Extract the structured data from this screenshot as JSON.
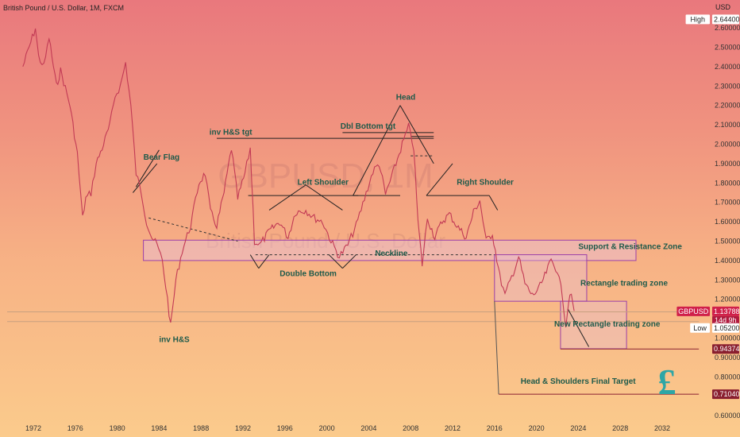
{
  "header": {
    "symbol_title": "British Pound / U.S. Dollar, 1M, FXCM",
    "currency": "USD"
  },
  "watermark": {
    "ticker": "GBPUSD, 1M",
    "name": "British Pound / U.S. Dollar"
  },
  "logo_glyph": "£",
  "chart_data": {
    "type": "line",
    "title": "British Pound / U.S. Dollar, 1M, FXCM",
    "y_unit": "USD",
    "ylim": [
      0.55,
      2.72
    ],
    "xlim": [
      1969.5,
      2035
    ],
    "price_path": [
      [
        1971.0,
        2.4
      ],
      [
        1971.6,
        2.5
      ],
      [
        1972.2,
        2.6
      ],
      [
        1972.5,
        2.45
      ],
      [
        1973.0,
        2.4
      ],
      [
        1973.5,
        2.55
      ],
      [
        1974.2,
        2.3
      ],
      [
        1974.6,
        2.38
      ],
      [
        1975.5,
        2.2
      ],
      [
        1976.2,
        1.95
      ],
      [
        1976.7,
        1.62
      ],
      [
        1977.0,
        1.72
      ],
      [
        1977.5,
        1.75
      ],
      [
        1978.0,
        1.9
      ],
      [
        1978.7,
        2.0
      ],
      [
        1979.3,
        2.1
      ],
      [
        1979.8,
        2.25
      ],
      [
        1980.3,
        2.3
      ],
      [
        1980.8,
        2.42
      ],
      [
        1981.3,
        2.2
      ],
      [
        1981.8,
        1.85
      ],
      [
        1982.3,
        1.75
      ],
      [
        1982.8,
        1.6
      ],
      [
        1983.3,
        1.52
      ],
      [
        1983.8,
        1.48
      ],
      [
        1984.3,
        1.4
      ],
      [
        1984.8,
        1.2
      ],
      [
        1985.1,
        1.06
      ],
      [
        1985.6,
        1.3
      ],
      [
        1986.2,
        1.45
      ],
      [
        1987.0,
        1.58
      ],
      [
        1987.8,
        1.8
      ],
      [
        1988.4,
        1.85
      ],
      [
        1988.9,
        1.65
      ],
      [
        1989.5,
        1.58
      ],
      [
        1990.2,
        1.75
      ],
      [
        1990.9,
        1.98
      ],
      [
        1991.5,
        1.72
      ],
      [
        1992.2,
        1.85
      ],
      [
        1992.7,
        1.98
      ],
      [
        1993.1,
        1.5
      ],
      [
        1993.6,
        1.48
      ],
      [
        1994.5,
        1.55
      ],
      [
        1995.5,
        1.6
      ],
      [
        1996.3,
        1.52
      ],
      [
        1997.0,
        1.65
      ],
      [
        1998.0,
        1.66
      ],
      [
        1998.8,
        1.62
      ],
      [
        1999.6,
        1.6
      ],
      [
        2000.4,
        1.5
      ],
      [
        2001.2,
        1.42
      ],
      [
        2002.0,
        1.48
      ],
      [
        2002.8,
        1.58
      ],
      [
        2003.6,
        1.72
      ],
      [
        2004.4,
        1.86
      ],
      [
        2005.0,
        1.9
      ],
      [
        2005.6,
        1.74
      ],
      [
        2006.3,
        1.85
      ],
      [
        2007.2,
        2.0
      ],
      [
        2007.8,
        2.09
      ],
      [
        2008.3,
        1.98
      ],
      [
        2008.7,
        1.6
      ],
      [
        2009.1,
        1.38
      ],
      [
        2009.6,
        1.62
      ],
      [
        2010.3,
        1.52
      ],
      [
        2011.0,
        1.6
      ],
      [
        2011.7,
        1.64
      ],
      [
        2012.4,
        1.58
      ],
      [
        2013.3,
        1.52
      ],
      [
        2014.0,
        1.65
      ],
      [
        2014.6,
        1.71
      ],
      [
        2015.2,
        1.5
      ],
      [
        2015.8,
        1.54
      ],
      [
        2016.5,
        1.32
      ],
      [
        2017.0,
        1.22
      ],
      [
        2017.8,
        1.34
      ],
      [
        2018.3,
        1.42
      ],
      [
        2018.9,
        1.28
      ],
      [
        2019.6,
        1.22
      ],
      [
        2020.2,
        1.25
      ],
      [
        2020.8,
        1.32
      ],
      [
        2021.4,
        1.4
      ],
      [
        2022.0,
        1.35
      ],
      [
        2022.5,
        1.21
      ],
      [
        2022.8,
        1.07
      ],
      [
        2023.2,
        1.24
      ],
      [
        2023.6,
        1.14
      ]
    ],
    "annotations": [
      {
        "id": "bear-flag",
        "text": "Bear Flag",
        "x": 1982.5,
        "y": 1.92
      },
      {
        "id": "inv-hs-tgt",
        "text": "inv H&S tgt",
        "x": 1988.8,
        "y": 2.05
      },
      {
        "id": "dbl-bottom-tgt",
        "text": "Dbl Bottom tgt",
        "x": 2001.3,
        "y": 2.08
      },
      {
        "id": "head",
        "text": "Head",
        "x": 2006.6,
        "y": 2.23
      },
      {
        "id": "left-shoulder",
        "text": "Left Shoulder",
        "x": 1997.2,
        "y": 1.79
      },
      {
        "id": "right-shoulder",
        "text": "Right Shoulder",
        "x": 2012.4,
        "y": 1.79
      },
      {
        "id": "neckline",
        "text": "Neckline",
        "x": 2004.6,
        "y": 1.425
      },
      {
        "id": "double-bottom",
        "text": "Double Bottom",
        "x": 1995.5,
        "y": 1.32
      },
      {
        "id": "inv-hs",
        "text": "inv H&S",
        "x": 1984.0,
        "y": 0.98
      },
      {
        "id": "support-resistance-zone",
        "text": "Support & Resistance Zone",
        "x": 2024.0,
        "y": 1.46
      },
      {
        "id": "rectangle-trading-zone",
        "text": "Rectangle trading zone",
        "x": 2024.2,
        "y": 1.27
      },
      {
        "id": "new-rectangle-trading-zone",
        "text": "New Rectangle trading zone",
        "x": 2021.7,
        "y": 1.06
      },
      {
        "id": "hs-final-target",
        "text": "Head & Shoulders Final Target",
        "x": 2018.5,
        "y": 0.765
      }
    ],
    "price_labels": [
      {
        "id": "high",
        "tag": "High",
        "value": "2.64400",
        "y": 2.644,
        "style": "light"
      },
      {
        "id": "gbpusd",
        "tag": "GBPUSD",
        "value": "1.13788",
        "sub": "14d 9h",
        "y": 1.138,
        "style": "current"
      },
      {
        "id": "low",
        "tag": "Low",
        "value": "1.05200",
        "y": 1.052,
        "style": "light"
      },
      {
        "id": "level-094374",
        "tag": "",
        "value": "0.94374",
        "y": 0.9437,
        "style": "dark"
      },
      {
        "id": "level-071040",
        "tag": "",
        "value": "0.71040",
        "y": 0.7104,
        "style": "dark"
      }
    ],
    "y_ticks": [
      "2.60000",
      "2.50000",
      "2.40000",
      "2.30000",
      "2.20000",
      "2.10000",
      "2.00000",
      "1.90000",
      "1.80000",
      "1.70000",
      "1.60000",
      "1.50000",
      "1.40000",
      "1.30000",
      "1.20000",
      "1.00000",
      "0.90000",
      "0.80000",
      "0.60000"
    ],
    "x_ticks": [
      "1972",
      "1976",
      "1980",
      "1984",
      "1988",
      "1992",
      "1996",
      "2000",
      "2004",
      "2008",
      "2012",
      "2016",
      "2020",
      "2024",
      "2028",
      "2032"
    ]
  }
}
